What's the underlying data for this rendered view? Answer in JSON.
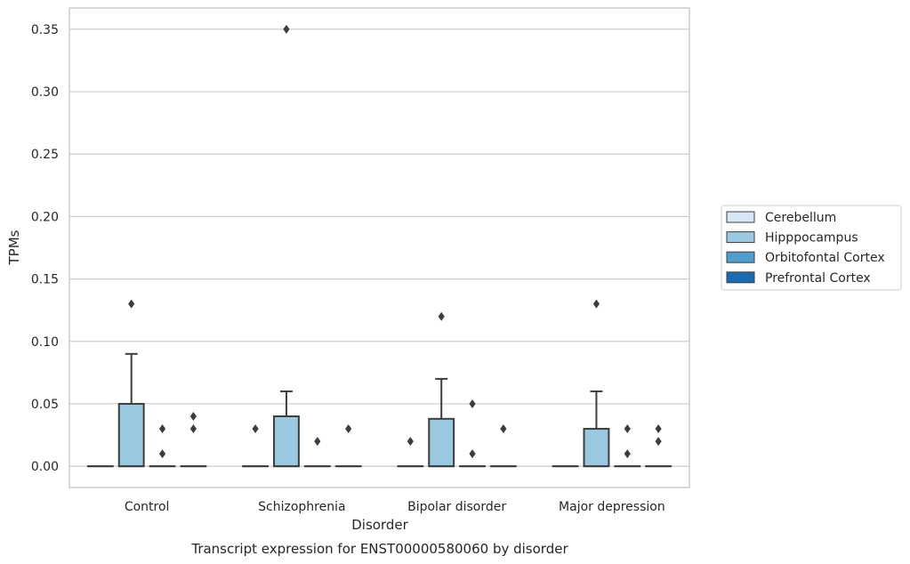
{
  "chart_data": {
    "type": "box",
    "xlabel": "Disorder",
    "ylabel": "TPMs",
    "caption": "Transcript expression for ENST00000580060 by disorder",
    "ylim": [
      -0.017,
      0.367
    ],
    "yticks": [
      0.0,
      0.05,
      0.1,
      0.15,
      0.2,
      0.25,
      0.3,
      0.35
    ],
    "ytick_labels": [
      "0.00",
      "0.05",
      "0.10",
      "0.15",
      "0.20",
      "0.25",
      "0.30",
      "0.35"
    ],
    "grid": true,
    "legend_position": "right",
    "categories": [
      "Control",
      "Schizophrenia",
      "Bipolar disorder",
      "Major depression"
    ],
    "series": [
      {
        "name": "Cerebellum",
        "color": "#d6e6f4",
        "boxes": [
          {
            "min": 0,
            "q1": 0,
            "median": 0,
            "q3": 0,
            "max": 0,
            "outliers": []
          },
          {
            "min": 0,
            "q1": 0,
            "median": 0,
            "q3": 0,
            "max": 0,
            "outliers": []
          },
          {
            "min": 0,
            "q1": 0,
            "median": 0,
            "q3": 0,
            "max": 0,
            "outliers": []
          },
          {
            "min": 0,
            "q1": 0,
            "median": 0,
            "q3": 0,
            "max": 0,
            "outliers": []
          }
        ]
      },
      {
        "name": "Hipppocampus",
        "color": "#9ac8e0",
        "boxes": [
          {
            "min": 0,
            "q1": 0,
            "median": 0,
            "q3": 0.05,
            "max": 0.09,
            "outliers": [
              0.13
            ]
          },
          {
            "min": 0,
            "q1": 0,
            "median": 0,
            "q3": 0.04,
            "max": 0.06,
            "outliers": [
              0.35
            ]
          },
          {
            "min": 0,
            "q1": 0,
            "median": 0,
            "q3": 0.038,
            "max": 0.07,
            "outliers": [
              0.12
            ]
          },
          {
            "min": 0,
            "q1": 0,
            "median": 0,
            "q3": 0.03,
            "max": 0.06,
            "outliers": [
              0.13
            ]
          }
        ]
      },
      {
        "name": "Orbitofontal Cortex",
        "color": "#529dcc",
        "boxes": [
          {
            "min": 0,
            "q1": 0,
            "median": 0,
            "q3": 0,
            "max": 0,
            "outliers": [
              0.01,
              0.03
            ]
          },
          {
            "min": 0,
            "q1": 0,
            "median": 0,
            "q3": 0,
            "max": 0,
            "outliers": [
              0.02
            ]
          },
          {
            "min": 0,
            "q1": 0,
            "median": 0,
            "q3": 0,
            "max": 0,
            "outliers": [
              0.01,
              0.05
            ]
          },
          {
            "min": 0,
            "q1": 0,
            "median": 0,
            "q3": 0,
            "max": 0,
            "outliers": [
              0.01,
              0.03
            ]
          }
        ]
      },
      {
        "name": "Prefrontal Cortex",
        "color": "#1c6aaf",
        "boxes": [
          {
            "min": 0,
            "q1": 0,
            "median": 0,
            "q3": 0,
            "max": 0,
            "outliers": [
              0.03,
              0.04
            ]
          },
          {
            "min": 0,
            "q1": 0,
            "median": 0,
            "q3": 0,
            "max": 0,
            "outliers": [
              0.03
            ]
          },
          {
            "min": 0,
            "q1": 0,
            "median": 0,
            "q3": 0,
            "max": 0,
            "outliers": [
              0.03
            ]
          },
          {
            "min": 0,
            "q1": 0,
            "median": 0,
            "q3": 0,
            "max": 0,
            "outliers": [
              0.02,
              0.03
            ]
          }
        ]
      }
    ],
    "extra_outliers": [
      {
        "category": "Schizophrenia",
        "series": "Cerebellum",
        "values": [
          0.03
        ]
      },
      {
        "category": "Bipolar disorder",
        "series": "Cerebellum",
        "values": [
          0.02
        ]
      }
    ]
  }
}
